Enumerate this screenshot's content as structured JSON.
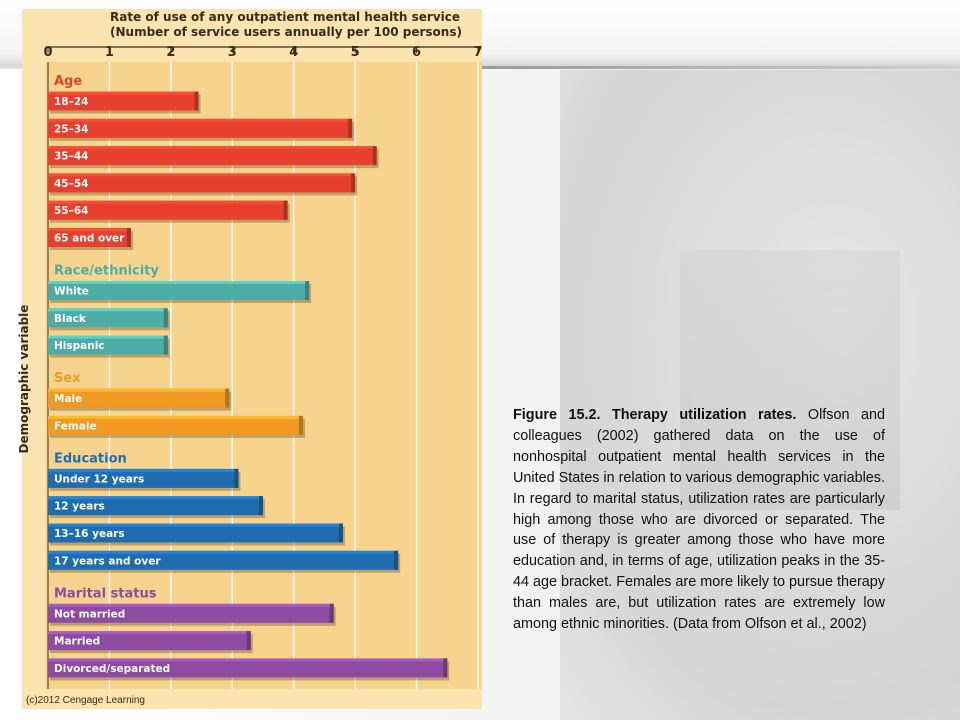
{
  "chart_data": {
    "type": "bar",
    "orientation": "horizontal",
    "title": "Rate of use of any outpatient mental health service",
    "subtitle": "(Number of service users annually per 100 persons)",
    "xlabel": "",
    "ylabel": "Demographic variable",
    "xlim": [
      0,
      7
    ],
    "xticks": [
      "0",
      "1",
      "2",
      "3",
      "4",
      "5",
      "6",
      "7"
    ],
    "grid": true,
    "groups": [
      {
        "name": "Age",
        "color": "#e8402e",
        "bars": [
          {
            "label": "18–24",
            "value": 2.45
          },
          {
            "label": "25–34",
            "value": 4.95
          },
          {
            "label": "35–44",
            "value": 5.35
          },
          {
            "label": "45–54",
            "value": 5.0
          },
          {
            "label": "55–64",
            "value": 3.9
          },
          {
            "label": "65 and over",
            "value": 1.35
          }
        ]
      },
      {
        "name": "Race/ethnicity",
        "color": "#4dada6",
        "bars": [
          {
            "label": "White",
            "value": 4.25
          },
          {
            "label": "Black",
            "value": 1.95
          },
          {
            "label": "Hispanic",
            "value": 1.95
          }
        ]
      },
      {
        "name": "Sex",
        "color": "#f09a23",
        "bars": [
          {
            "label": "Male",
            "value": 2.95
          },
          {
            "label": "Female",
            "value": 4.15
          }
        ]
      },
      {
        "name": "Education",
        "color": "#1f6db0",
        "bars": [
          {
            "label": "Under 12 years",
            "value": 3.1
          },
          {
            "label": "12 years",
            "value": 3.5
          },
          {
            "label": "13–16 years",
            "value": 4.8
          },
          {
            "label": "17 years and over",
            "value": 5.7
          }
        ]
      },
      {
        "name": "Marital status",
        "color": "#8e4ba2",
        "bars": [
          {
            "label": "Not married",
            "value": 4.65
          },
          {
            "label": "Married",
            "value": 3.3
          },
          {
            "label": "Divorced/separated",
            "value": 6.5
          }
        ]
      }
    ]
  },
  "credit": "(c)2012 Cengage Learning",
  "caption": {
    "bold": "Figure 15.2.  Therapy utilization rates.",
    "text": " Olfson and colleagues (2002) gathered data on the use of nonhospital outpatient mental health services in the United States in relation to various demographic variables.  In regard to marital status, utilization rates are particularly high among those who are divorced or separated. The use of therapy is greater among those who have more education and, in terms of age, utilization peaks in the 35-44 age bracket. Females are more likely to pursue therapy than males are, but utilization rates are extremely low among ethnic minorities. (Data from Olfson et al., 2002)"
  }
}
